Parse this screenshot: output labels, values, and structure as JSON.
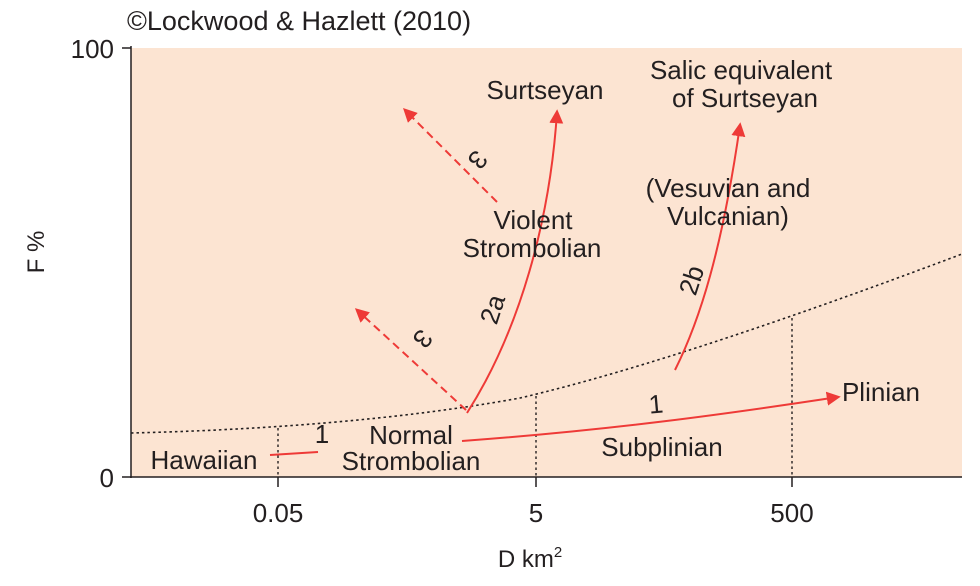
{
  "credit": "©Lockwood & Hazlett (2010)",
  "axes": {
    "y_label": "F %",
    "x_label_base": "D km",
    "x_label_sup": "2",
    "y_ticks": [
      "100",
      "0"
    ],
    "x_ticks": [
      "0.05",
      "5",
      "500"
    ]
  },
  "regions": {
    "surtseyan": "Surtseyan",
    "salic_line1": "Salic equivalent",
    "salic_line2": "of Surtseyan",
    "vesuvian_line1": "(Vesuvian and",
    "vesuvian_line2": "Vulcanian)",
    "violent_line1": "Violent",
    "violent_line2": "Strombolian",
    "normal_line1": "Normal",
    "normal_line2": "Strombolian",
    "hawaiian": "Hawaiian",
    "subplinian": "Subplinian",
    "plinian": "Plinian"
  },
  "path_labels": {
    "p1_left": "1",
    "p1_right": "1",
    "p2a": "2a",
    "p2b": "2b",
    "p3_upper": "3",
    "p3_lower": "3"
  },
  "colors": {
    "field": "#fce4d2",
    "arrow": "#ee3a37",
    "ink": "#231f20"
  }
}
